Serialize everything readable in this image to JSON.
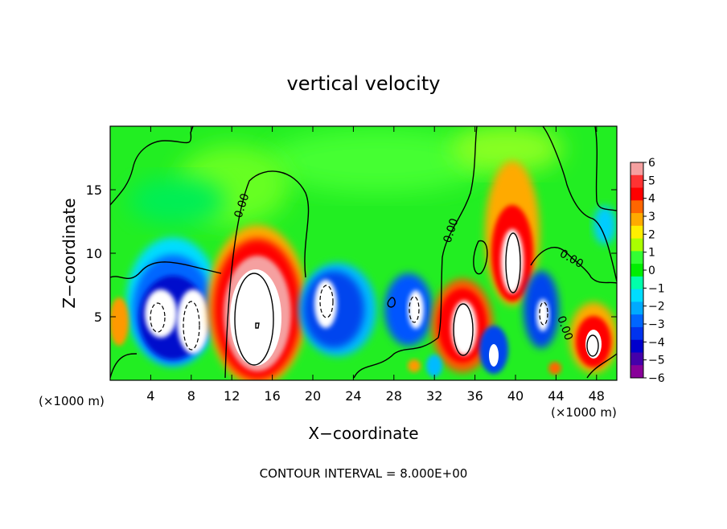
{
  "chart_data": {
    "type": "heatmap",
    "title": "vertical velocity",
    "xlabel": "X−coordinate",
    "ylabel": "Z−coordinate",
    "x_unit_left": "(×1000 m)",
    "x_unit_right": "(×1000 m)",
    "footer": "CONTOUR INTERVAL = 8.000E+00",
    "xlim": [
      0,
      50
    ],
    "ylim": [
      0,
      20
    ],
    "x_ticks": [
      4,
      8,
      12,
      16,
      20,
      24,
      28,
      32,
      36,
      40,
      44,
      48
    ],
    "y_ticks": [
      5,
      10,
      15
    ],
    "x_tick_labels": [
      "4",
      "8",
      "12",
      "16",
      "20",
      "24",
      "28",
      "32",
      "36",
      "40",
      "44",
      "48"
    ],
    "y_tick_labels": [
      "5",
      "10",
      "15"
    ],
    "colorbar": {
      "range": [
        -6,
        6
      ],
      "ticks": [
        6,
        5,
        4,
        3,
        2,
        1,
        0,
        -1,
        -2,
        -3,
        -4,
        -5,
        -6
      ],
      "tick_labels": [
        "6",
        "5",
        "4",
        "3",
        "2",
        "1",
        "0",
        "−1",
        "−2",
        "−3",
        "−4",
        "−5",
        "−6"
      ],
      "colors": [
        "#f5a0a0",
        "#ff3333",
        "#ff0000",
        "#ff6600",
        "#ffaa00",
        "#ffee00",
        "#aaff00",
        "#33ff33",
        "#00ee00",
        "#00ffaa",
        "#00ddff",
        "#00aaff",
        "#0066ff",
        "#0033ee",
        "#0000cc",
        "#4400aa",
        "#880099"
      ]
    },
    "contour_labels": [
      "0.00",
      "0.00",
      "0.00",
      "0.00"
    ],
    "features": [
      {
        "kind": "updraft",
        "x": 14.5,
        "z": 5,
        "value": 6
      },
      {
        "kind": "updraft",
        "x": 39.5,
        "z": 9,
        "value": 5
      },
      {
        "kind": "updraft",
        "x": 34.5,
        "z": 4.5,
        "value": 5
      },
      {
        "kind": "updraft",
        "x": 47.5,
        "z": 3,
        "value": 4
      },
      {
        "kind": "updraft",
        "x": 1,
        "z": 4.5,
        "value": 3
      },
      {
        "kind": "downdraft",
        "x": 6.5,
        "z": 4.5,
        "value": -6
      },
      {
        "kind": "downdraft",
        "x": 21,
        "z": 5.5,
        "value": -5
      },
      {
        "kind": "downdraft",
        "x": 29.5,
        "z": 5,
        "value": -5
      },
      {
        "kind": "downdraft",
        "x": 38,
        "z": 2.5,
        "value": -5
      },
      {
        "kind": "downdraft",
        "x": 42.5,
        "z": 5.5,
        "value": -5
      },
      {
        "kind": "downdraft",
        "x": 49,
        "z": 12,
        "value": -2
      }
    ]
  }
}
